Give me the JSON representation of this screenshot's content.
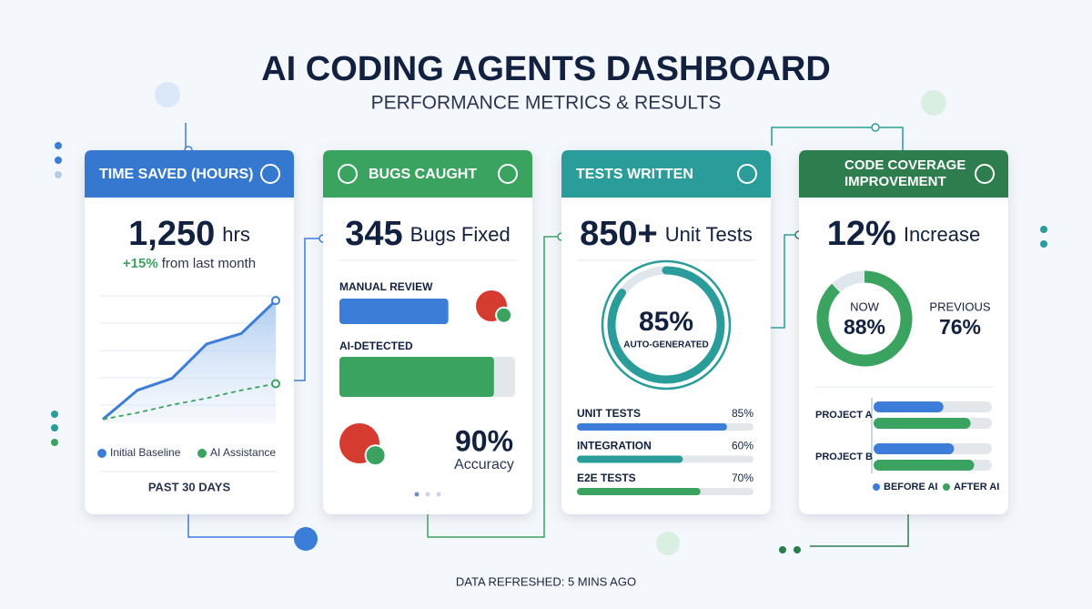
{
  "header": {
    "title": "AI CODING AGENTS DASHBOARD",
    "subtitle": "PERFORMANCE METRICS & RESULTS"
  },
  "cards": [
    {
      "title": "TIME SAVED (HOURS)",
      "metric": "1,250",
      "unit": "hrs",
      "change": "+15%",
      "change_text": "from last month",
      "chart": {
        "type": "line",
        "ylim": [
          0,
          100
        ],
        "series": [
          {
            "name": "Initial Baseline",
            "color": "#3b7dd8",
            "values": [
              3,
              25,
              34,
              60,
              68,
              93
            ]
          },
          {
            "name": "AI Assistance",
            "color": "#3aa35f",
            "values": [
              3,
              8,
              14,
              19,
              25,
              30
            ]
          }
        ]
      },
      "footer": "PAST 30 DAYS"
    },
    {
      "title": "BUGS CAUGHT",
      "metric": "345",
      "unit": "Bugs Fixed",
      "bars": [
        {
          "name": "MANUAL REVIEW",
          "value": 62,
          "color": "#3b7dd8"
        },
        {
          "name": "AI-DETECTED",
          "value": 88,
          "color": "#3aa35f"
        }
      ],
      "accuracy": "90%",
      "accuracy_text": "Accuracy"
    },
    {
      "title": "TESTS WRITTEN",
      "metric": "850+",
      "unit": "Unit Tests",
      "donut": {
        "value": 85,
        "label": "85%",
        "caption": "AUTO-GENERATED"
      },
      "bars": [
        {
          "name": "UNIT TESTS",
          "value": 85,
          "label": "85%"
        },
        {
          "name": "INTEGRATION",
          "value": 60,
          "label": "60%"
        },
        {
          "name": "E2E TESTS",
          "value": 70,
          "label": "70%"
        }
      ]
    },
    {
      "title": "CODE COVERAGE IMPROVEMENT",
      "metric": "12%",
      "unit": "Increase",
      "now": {
        "label": "NOW",
        "value": 88,
        "value_label": "88%"
      },
      "previous": {
        "label": "PREVIOUS",
        "value": "76%"
      },
      "projects": {
        "categories": [
          "PROJECT A",
          "PROJECT B"
        ],
        "series": [
          {
            "name": "BEFORE AI",
            "color": "#3b7dd8",
            "values": [
              59,
              68
            ]
          },
          {
            "name": "AFTER AI",
            "color": "#3aa35f",
            "values": [
              82,
              85
            ]
          }
        ]
      }
    }
  ],
  "footer": "DATA REFRESHED: 5 MINS AGO"
}
